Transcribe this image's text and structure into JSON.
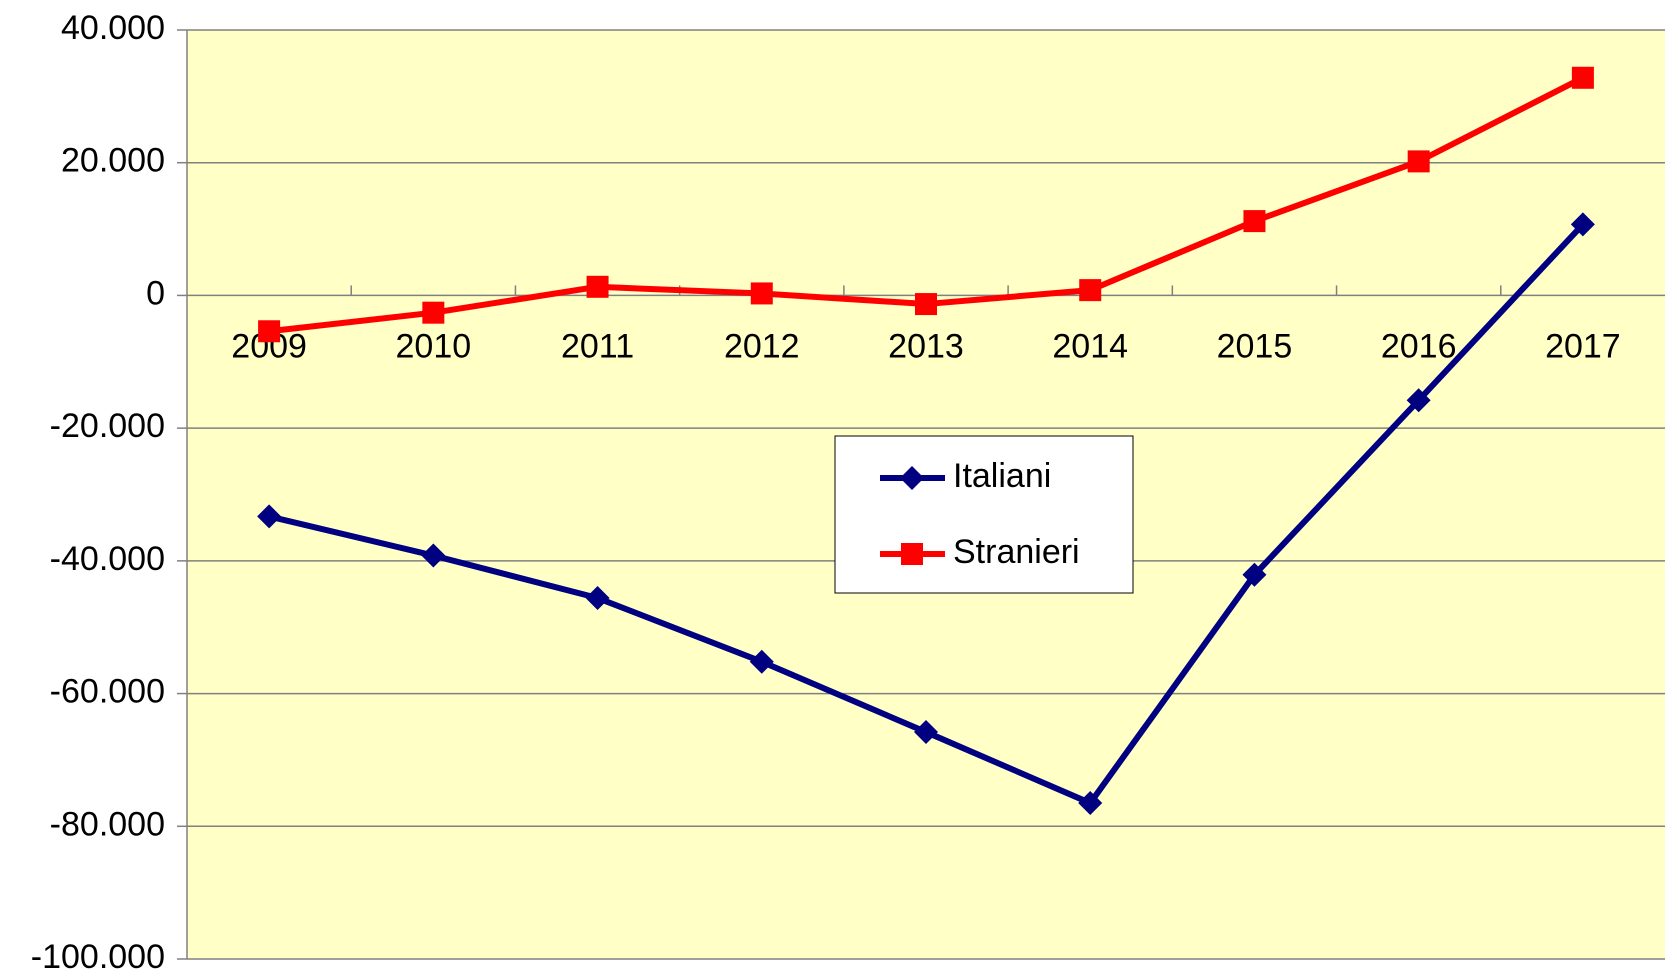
{
  "chart_data": {
    "type": "line",
    "categories": [
      "2009",
      "2010",
      "2011",
      "2012",
      "2013",
      "2014",
      "2015",
      "2016",
      "2017"
    ],
    "series": [
      {
        "name": "Italiani",
        "color": "#000080",
        "marker": "diamond",
        "values": [
          -33300,
          -39200,
          -45600,
          -55200,
          -65800,
          -76500,
          -42100,
          -15800,
          10700
        ]
      },
      {
        "name": "Stranieri",
        "color": "#ff0000",
        "marker": "square",
        "values": [
          -5400,
          -2600,
          1300,
          300,
          -1300,
          800,
          11200,
          20200,
          32800
        ]
      }
    ],
    "ylim": [
      -100000,
      40000
    ],
    "yticks": [
      {
        "value": -100000,
        "label": "-100.000"
      },
      {
        "value": -80000,
        "label": "-80.000"
      },
      {
        "value": -60000,
        "label": "-60.000"
      },
      {
        "value": -40000,
        "label": "-40.000"
      },
      {
        "value": -20000,
        "label": "-20.000"
      },
      0,
      {
        "value": 20000,
        "label": "20.000"
      },
      {
        "value": 40000,
        "label": "40.000"
      }
    ],
    "grid": true,
    "plot_background": "#ffffc6"
  }
}
